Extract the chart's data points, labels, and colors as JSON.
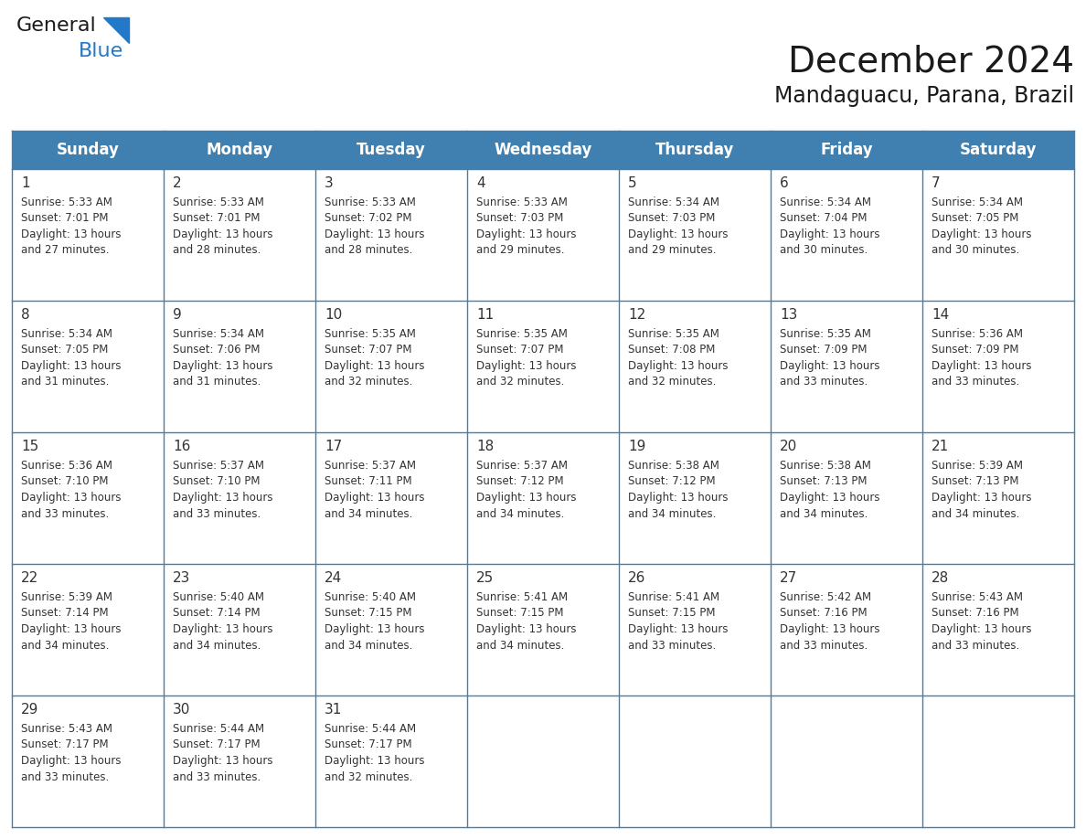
{
  "title": "December 2024",
  "subtitle": "Mandaguacu, Parana, Brazil",
  "header_bg_color": "#4080B0",
  "header_text_color": "#FFFFFF",
  "cell_bg_color": "#FFFFFF",
  "border_color": "#4080B0",
  "day_names": [
    "Sunday",
    "Monday",
    "Tuesday",
    "Wednesday",
    "Thursday",
    "Friday",
    "Saturday"
  ],
  "title_color": "#1a1a1a",
  "subtitle_color": "#1a1a1a",
  "day_number_color": "#333333",
  "info_text_color": "#333333",
  "days": [
    {
      "date": 1,
      "col": 0,
      "row": 0,
      "sunrise": "5:33 AM",
      "sunset": "7:01 PM",
      "daylight": "13 hours and 27 minutes."
    },
    {
      "date": 2,
      "col": 1,
      "row": 0,
      "sunrise": "5:33 AM",
      "sunset": "7:01 PM",
      "daylight": "13 hours and 28 minutes."
    },
    {
      "date": 3,
      "col": 2,
      "row": 0,
      "sunrise": "5:33 AM",
      "sunset": "7:02 PM",
      "daylight": "13 hours and 28 minutes."
    },
    {
      "date": 4,
      "col": 3,
      "row": 0,
      "sunrise": "5:33 AM",
      "sunset": "7:03 PM",
      "daylight": "13 hours and 29 minutes."
    },
    {
      "date": 5,
      "col": 4,
      "row": 0,
      "sunrise": "5:34 AM",
      "sunset": "7:03 PM",
      "daylight": "13 hours and 29 minutes."
    },
    {
      "date": 6,
      "col": 5,
      "row": 0,
      "sunrise": "5:34 AM",
      "sunset": "7:04 PM",
      "daylight": "13 hours and 30 minutes."
    },
    {
      "date": 7,
      "col": 6,
      "row": 0,
      "sunrise": "5:34 AM",
      "sunset": "7:05 PM",
      "daylight": "13 hours and 30 minutes."
    },
    {
      "date": 8,
      "col": 0,
      "row": 1,
      "sunrise": "5:34 AM",
      "sunset": "7:05 PM",
      "daylight": "13 hours and 31 minutes."
    },
    {
      "date": 9,
      "col": 1,
      "row": 1,
      "sunrise": "5:34 AM",
      "sunset": "7:06 PM",
      "daylight": "13 hours and 31 minutes."
    },
    {
      "date": 10,
      "col": 2,
      "row": 1,
      "sunrise": "5:35 AM",
      "sunset": "7:07 PM",
      "daylight": "13 hours and 32 minutes."
    },
    {
      "date": 11,
      "col": 3,
      "row": 1,
      "sunrise": "5:35 AM",
      "sunset": "7:07 PM",
      "daylight": "13 hours and 32 minutes."
    },
    {
      "date": 12,
      "col": 4,
      "row": 1,
      "sunrise": "5:35 AM",
      "sunset": "7:08 PM",
      "daylight": "13 hours and 32 minutes."
    },
    {
      "date": 13,
      "col": 5,
      "row": 1,
      "sunrise": "5:35 AM",
      "sunset": "7:09 PM",
      "daylight": "13 hours and 33 minutes."
    },
    {
      "date": 14,
      "col": 6,
      "row": 1,
      "sunrise": "5:36 AM",
      "sunset": "7:09 PM",
      "daylight": "13 hours and 33 minutes."
    },
    {
      "date": 15,
      "col": 0,
      "row": 2,
      "sunrise": "5:36 AM",
      "sunset": "7:10 PM",
      "daylight": "13 hours and 33 minutes."
    },
    {
      "date": 16,
      "col": 1,
      "row": 2,
      "sunrise": "5:37 AM",
      "sunset": "7:10 PM",
      "daylight": "13 hours and 33 minutes."
    },
    {
      "date": 17,
      "col": 2,
      "row": 2,
      "sunrise": "5:37 AM",
      "sunset": "7:11 PM",
      "daylight": "13 hours and 34 minutes."
    },
    {
      "date": 18,
      "col": 3,
      "row": 2,
      "sunrise": "5:37 AM",
      "sunset": "7:12 PM",
      "daylight": "13 hours and 34 minutes."
    },
    {
      "date": 19,
      "col": 4,
      "row": 2,
      "sunrise": "5:38 AM",
      "sunset": "7:12 PM",
      "daylight": "13 hours and 34 minutes."
    },
    {
      "date": 20,
      "col": 5,
      "row": 2,
      "sunrise": "5:38 AM",
      "sunset": "7:13 PM",
      "daylight": "13 hours and 34 minutes."
    },
    {
      "date": 21,
      "col": 6,
      "row": 2,
      "sunrise": "5:39 AM",
      "sunset": "7:13 PM",
      "daylight": "13 hours and 34 minutes."
    },
    {
      "date": 22,
      "col": 0,
      "row": 3,
      "sunrise": "5:39 AM",
      "sunset": "7:14 PM",
      "daylight": "13 hours and 34 minutes."
    },
    {
      "date": 23,
      "col": 1,
      "row": 3,
      "sunrise": "5:40 AM",
      "sunset": "7:14 PM",
      "daylight": "13 hours and 34 minutes."
    },
    {
      "date": 24,
      "col": 2,
      "row": 3,
      "sunrise": "5:40 AM",
      "sunset": "7:15 PM",
      "daylight": "13 hours and 34 minutes."
    },
    {
      "date": 25,
      "col": 3,
      "row": 3,
      "sunrise": "5:41 AM",
      "sunset": "7:15 PM",
      "daylight": "13 hours and 34 minutes."
    },
    {
      "date": 26,
      "col": 4,
      "row": 3,
      "sunrise": "5:41 AM",
      "sunset": "7:15 PM",
      "daylight": "13 hours and 33 minutes."
    },
    {
      "date": 27,
      "col": 5,
      "row": 3,
      "sunrise": "5:42 AM",
      "sunset": "7:16 PM",
      "daylight": "13 hours and 33 minutes."
    },
    {
      "date": 28,
      "col": 6,
      "row": 3,
      "sunrise": "5:43 AM",
      "sunset": "7:16 PM",
      "daylight": "13 hours and 33 minutes."
    },
    {
      "date": 29,
      "col": 0,
      "row": 4,
      "sunrise": "5:43 AM",
      "sunset": "7:17 PM",
      "daylight": "13 hours and 33 minutes."
    },
    {
      "date": 30,
      "col": 1,
      "row": 4,
      "sunrise": "5:44 AM",
      "sunset": "7:17 PM",
      "daylight": "13 hours and 33 minutes."
    },
    {
      "date": 31,
      "col": 2,
      "row": 4,
      "sunrise": "5:44 AM",
      "sunset": "7:17 PM",
      "daylight": "13 hours and 32 minutes."
    }
  ],
  "logo_general_color": "#1a1a1a",
  "logo_blue_color": "#2478C8",
  "logo_triangle_color": "#2478C8"
}
